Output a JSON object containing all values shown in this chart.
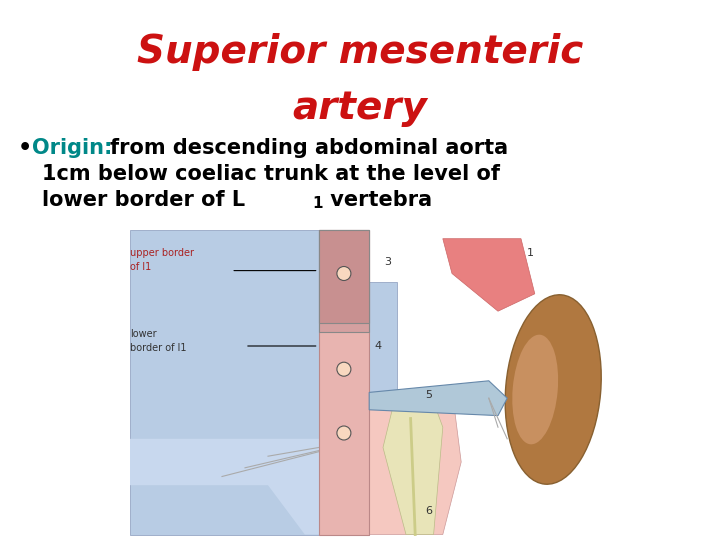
{
  "title_line1": "Superior mesenteric",
  "title_line2": "artery",
  "title_color": "#cc1111",
  "title_fontsize": 28,
  "title_fontstyle": "italic",
  "bullet_label": "Origin:",
  "bullet_label_color": "#008888",
  "bullet_fontsize": 15,
  "bullet_color": "#000000",
  "background_color": "#ffffff",
  "label_color_red": "#aa2222",
  "label_color_black": "#333333"
}
